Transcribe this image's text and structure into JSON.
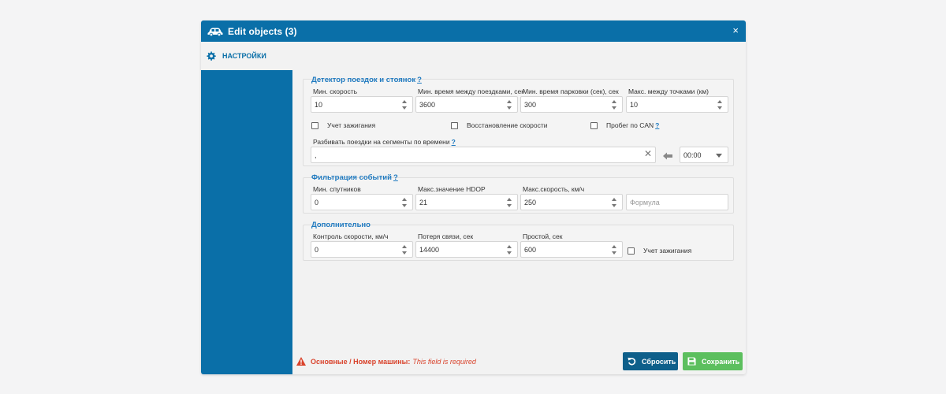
{
  "window": {
    "title": "Edit objects (3)",
    "close": "×"
  },
  "sidebar": {
    "tab_label": "НАСТРОЙКИ"
  },
  "trip_detector": {
    "title": "Детектор поездок и стоянок",
    "help": "?",
    "fields": [
      {
        "label": "Мин. скорость",
        "value": "10"
      },
      {
        "label": "Мин. время между поездками, сек",
        "value": "3600"
      },
      {
        "label": "Мин. время парковки (сек), сек",
        "value": "300"
      },
      {
        "label": "Макс. между точками (км)",
        "value": "10"
      }
    ],
    "checkboxes": [
      {
        "label": "Учет зажигания",
        "help": ""
      },
      {
        "label": "Восстановление скорости",
        "help": ""
      },
      {
        "label": "Пробег по CAN",
        "help": "?"
      }
    ],
    "segments_label": "Разбивать поездки на сегменты по времени",
    "segments_help": "?",
    "segments_value": ",",
    "clear": "✕",
    "time_value": "00:00"
  },
  "event_filter": {
    "title": "Фильтрация событий",
    "help": "?",
    "fields": [
      {
        "label": "Мин. спутников",
        "value": "0"
      },
      {
        "label": "Макс.значение HDOP",
        "value": "21"
      },
      {
        "label": "Макс.скорость, км/ч",
        "value": "250"
      }
    ],
    "formula_placeholder": "Формула"
  },
  "additional": {
    "title": "Дополнительно",
    "fields": [
      {
        "label": "Контроль скорости, км/ч",
        "value": "0"
      },
      {
        "label": "Потеря связи, сек",
        "value": "14400"
      },
      {
        "label": "Простой, сек",
        "value": "600"
      }
    ],
    "checkbox_label": "Учет зажигания"
  },
  "footer": {
    "error_bold": "Основные / Номер машины:",
    "error_message": "This field is required",
    "reset_label": "Сбросить",
    "save_label": "Сохранить"
  },
  "colors": {
    "primary": "#0a6fa8",
    "save": "#5cbf5e",
    "error": "#d9432c",
    "link": "#1f7ac0"
  }
}
